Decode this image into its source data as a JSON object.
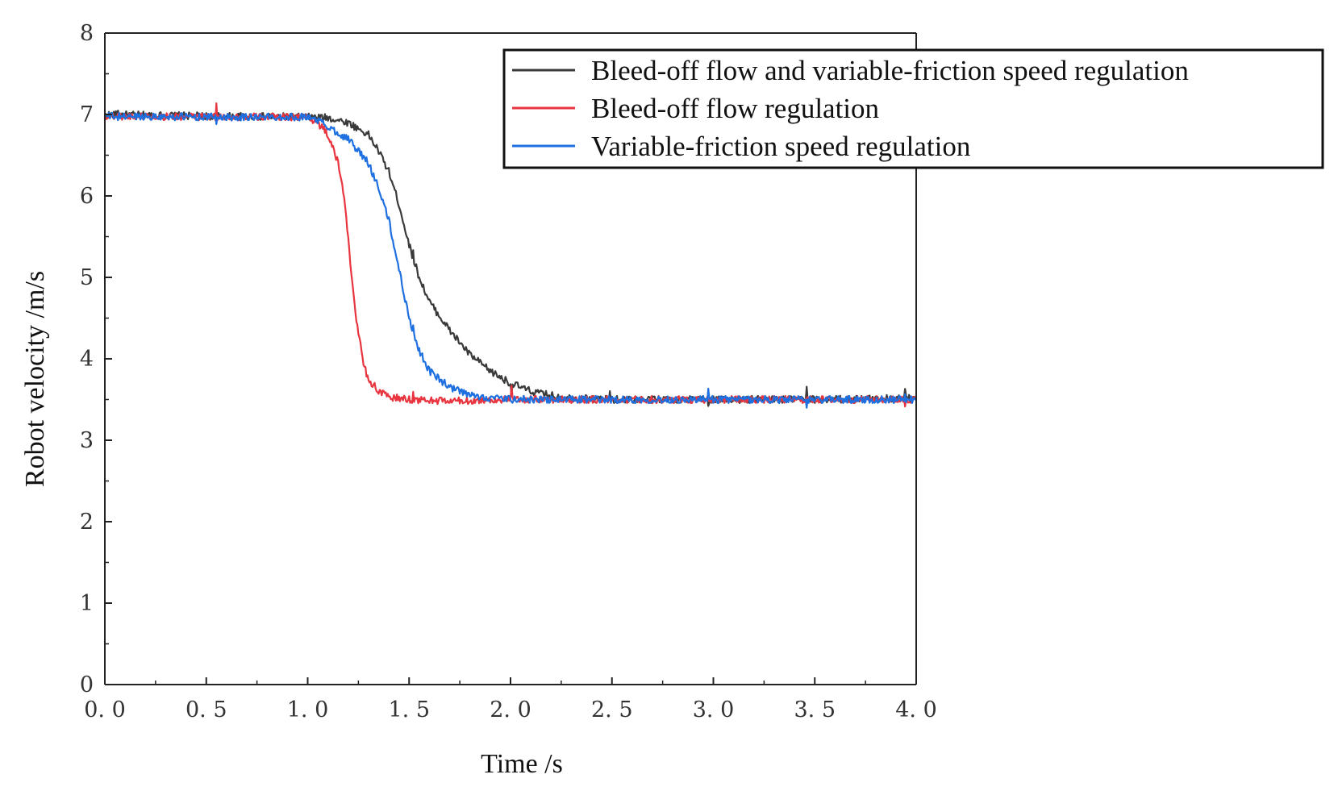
{
  "chart_data": {
    "type": "line",
    "title": "",
    "xlabel": "Time /s",
    "ylabel": "Robot velocity /m/s",
    "xlim": [
      0,
      4
    ],
    "ylim": [
      0,
      8
    ],
    "x_ticks": [
      0,
      0.5,
      1,
      1.5,
      2,
      2.5,
      3,
      3.5,
      4
    ],
    "x_tick_labels": [
      "0. 0",
      "0. 5",
      "1. 0",
      "1. 5",
      "2. 0",
      "2. 5",
      "3. 0",
      "3. 5",
      "4. 0"
    ],
    "y_ticks": [
      0,
      1,
      2,
      3,
      4,
      5,
      6,
      7,
      8
    ],
    "y_tick_labels": [
      "0",
      "1",
      "2",
      "3",
      "4",
      "5",
      "6",
      "7",
      "8"
    ],
    "grid": false,
    "legend_position": "top-right",
    "series": [
      {
        "name": "Bleed-off flow and variable-friction speed regulation",
        "color": "#3a3a3a",
        "x": [
          0,
          0.5,
          1.0,
          1.1,
          1.2,
          1.3,
          1.35,
          1.4,
          1.45,
          1.5,
          1.55,
          1.6,
          1.7,
          1.8,
          1.9,
          2.0,
          2.1,
          2.2,
          2.3,
          2.5,
          3.0,
          3.5,
          4.0
        ],
        "y": [
          7.0,
          6.98,
          6.97,
          6.96,
          6.9,
          6.75,
          6.55,
          6.3,
          5.9,
          5.4,
          5.0,
          4.7,
          4.35,
          4.05,
          3.85,
          3.7,
          3.6,
          3.55,
          3.52,
          3.5,
          3.5,
          3.5,
          3.52
        ]
      },
      {
        "name": "Bleed-off flow regulation",
        "color": "#e8353f",
        "x": [
          0,
          0.5,
          1.0,
          1.05,
          1.1,
          1.15,
          1.18,
          1.2,
          1.22,
          1.25,
          1.28,
          1.3,
          1.35,
          1.4,
          1.5,
          1.7,
          2.0,
          2.5,
          3.0,
          3.5,
          4.0
        ],
        "y": [
          6.98,
          6.97,
          6.97,
          6.9,
          6.75,
          6.4,
          6.0,
          5.5,
          4.9,
          4.3,
          3.9,
          3.75,
          3.6,
          3.53,
          3.5,
          3.48,
          3.5,
          3.5,
          3.5,
          3.5,
          3.5
        ]
      },
      {
        "name": "Variable-friction speed regulation",
        "color": "#1e6fe0",
        "x": [
          0,
          0.5,
          1.0,
          1.05,
          1.1,
          1.2,
          1.3,
          1.35,
          1.4,
          1.45,
          1.5,
          1.55,
          1.6,
          1.7,
          1.8,
          1.9,
          2.0,
          2.5,
          3.0,
          3.5,
          4.0
        ],
        "y": [
          6.98,
          6.97,
          6.97,
          6.93,
          6.85,
          6.7,
          6.4,
          6.1,
          5.7,
          5.1,
          4.5,
          4.1,
          3.85,
          3.65,
          3.55,
          3.52,
          3.5,
          3.5,
          3.5,
          3.5,
          3.5
        ]
      }
    ]
  }
}
